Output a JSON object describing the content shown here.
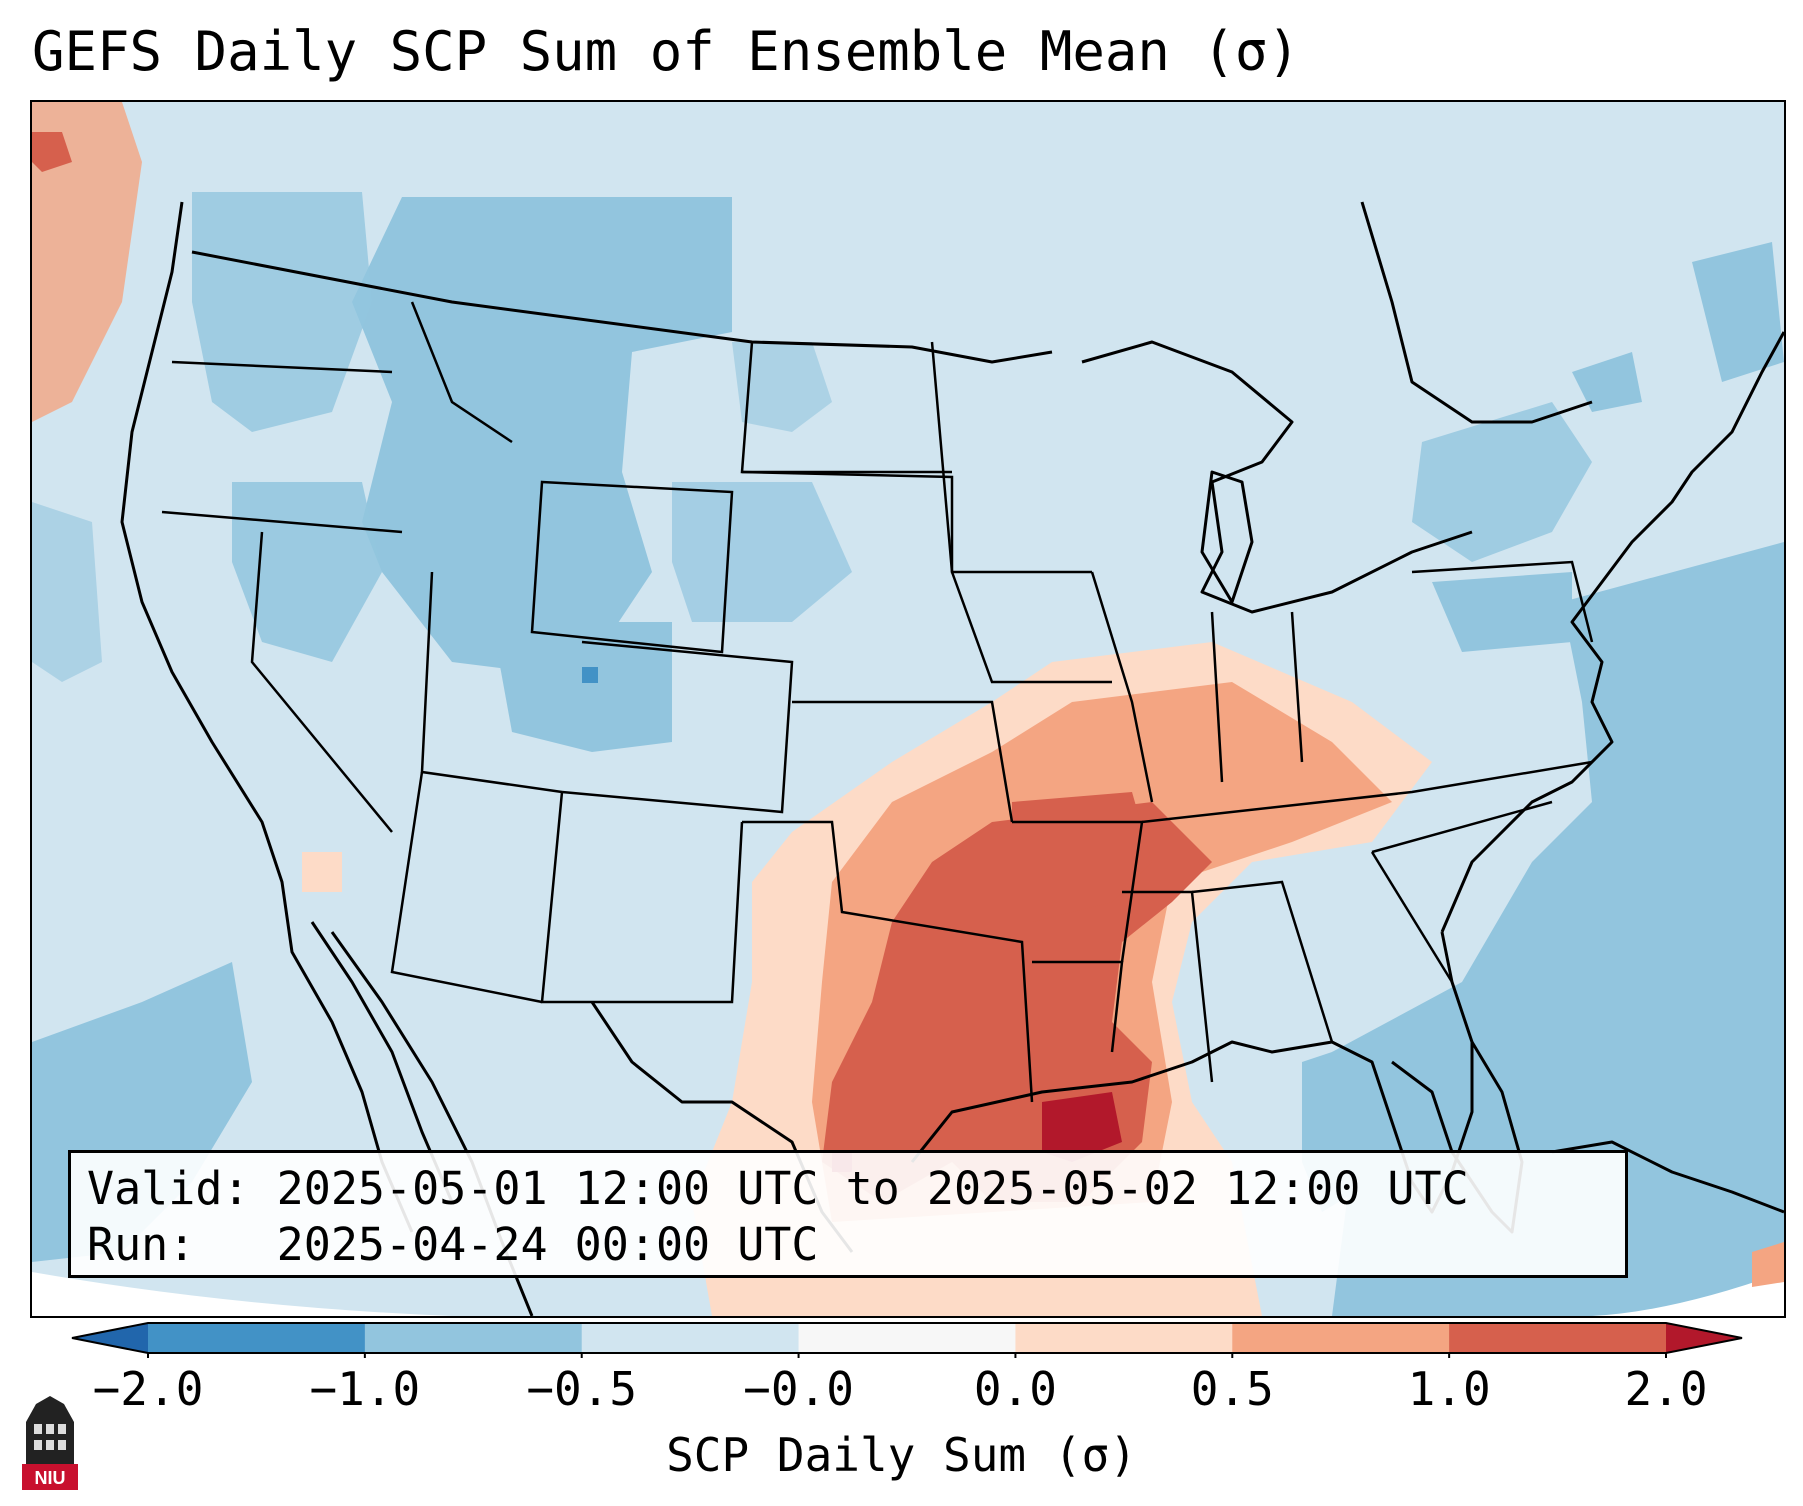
{
  "title": "GEFS Daily SCP Sum of Ensemble Mean (σ)",
  "info": {
    "valid_line": "Valid: 2025-05-01 12:00 UTC to 2025-05-02 12:00 UTC",
    "run_line": "Run:   2025-04-24 00:00 UTC"
  },
  "colorbar": {
    "label": "SCP Daily Sum (σ)",
    "ticks": [
      "−2.0",
      "−1.0",
      "−0.5",
      "−0.0",
      "0.0",
      "0.5",
      "1.0",
      "2.0"
    ],
    "colors": [
      "#4292c6",
      "#92c5de",
      "#d1e5f0",
      "#f7f7f7",
      "#fddbc7",
      "#f4a582",
      "#d6604d"
    ],
    "under_color": "#2166ac",
    "over_color": "#b2182b"
  },
  "map_colors": {
    "background": "#d1e5f0",
    "ocean_blue": "#92c5de",
    "light_orange": "#fddbc7",
    "orange": "#f4a582",
    "red": "#d6604d",
    "dark_red": "#b2182b"
  },
  "logo_text": "NIU"
}
